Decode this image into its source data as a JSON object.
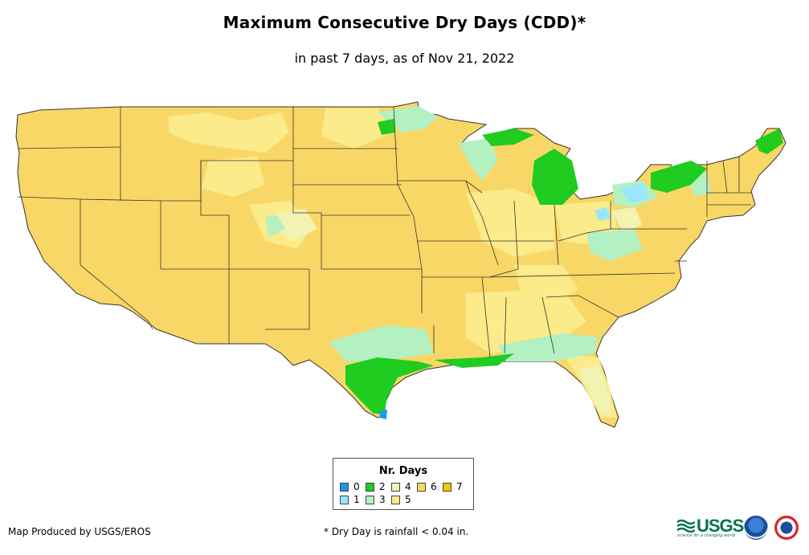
{
  "title": "Maximum Consecutive Dry Days (CDD)*",
  "subtitle": "in past 7 days, as of Nov 21, 2022",
  "legend": {
    "title": "Nr. Days",
    "items": [
      {
        "label": "0",
        "color": "#1a9ae6"
      },
      {
        "label": "1",
        "color": "#99e6ff"
      },
      {
        "label": "2",
        "color": "#1fcc1f"
      },
      {
        "label": "3",
        "color": "#b3f0c2"
      },
      {
        "label": "4",
        "color": "#f2f2b3"
      },
      {
        "label": "5",
        "color": "#fbeb8a"
      },
      {
        "label": "6",
        "color": "#f9d766"
      },
      {
        "label": "7",
        "color": "#f5c400"
      }
    ]
  },
  "map": {
    "base_color": "#f9d766",
    "border_color": "#333333",
    "dominant_value": "6"
  },
  "credit": "Map Produced by USGS/EROS",
  "footnote": "* Dry Day is rainfall < 0.04 in.",
  "logos": {
    "usgs": "USGS",
    "usgs_tagline": "science for a changing world",
    "noaa": "noaa-logo",
    "nws": "nws-logo"
  }
}
